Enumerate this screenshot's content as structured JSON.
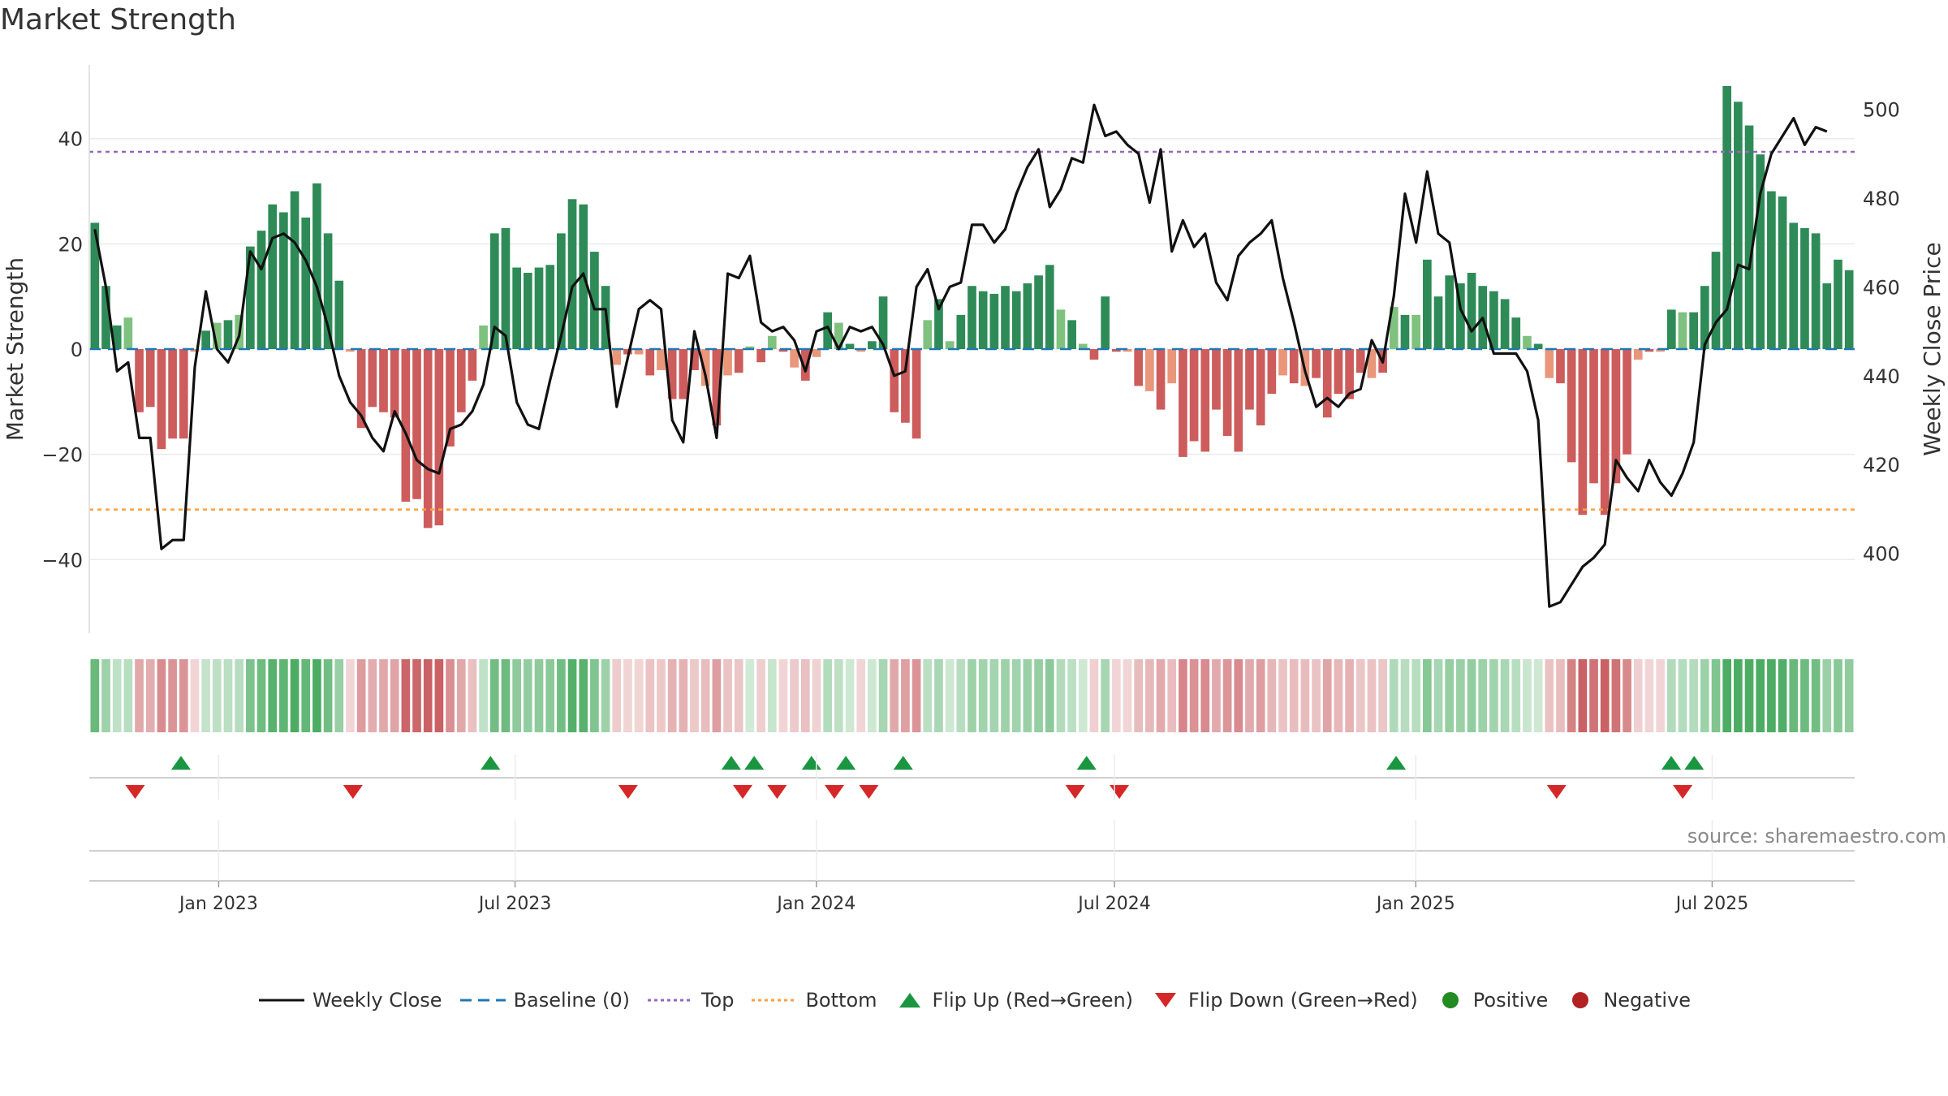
{
  "title": "Market Strength",
  "source": "source: sharemaestro.com",
  "colors": {
    "pos_strong": "#2e8b57",
    "pos_light": "#7fc17f",
    "neg_strong": "#cd5c5c",
    "neg_light": "#e9967a",
    "close_line": "#111111",
    "baseline": "#1f77b4",
    "top": "#9467bd",
    "bottom": "#ff9f40",
    "flip_up": "#1a9641",
    "flip_down": "#d62728",
    "positive": "#228b22",
    "negative": "#b22222"
  },
  "legend": [
    {
      "label": "Weekly Close",
      "icon": "solid-line-icon"
    },
    {
      "label": "Baseline (0)",
      "icon": "dashed-line-icon"
    },
    {
      "label": "Top",
      "icon": "dotted-purple-line-icon"
    },
    {
      "label": "Bottom",
      "icon": "dotted-orange-line-icon"
    },
    {
      "label": "Flip Up (Red→Green)",
      "icon": "triangle-up-icon"
    },
    {
      "label": "Flip Down (Green→Red)",
      "icon": "triangle-down-icon"
    },
    {
      "label": "Positive",
      "icon": "green-dot-icon"
    },
    {
      "label": "Negative",
      "icon": "red-dot-icon"
    }
  ],
  "chart_data": {
    "type": "bar",
    "title": "Market Strength",
    "ylabel": "Market Strength",
    "y2label": "Weekly Close Price",
    "ylim": [
      -54,
      54
    ],
    "y2lim": [
      382,
      510
    ],
    "yticks": [
      -40,
      -20,
      0,
      20,
      40
    ],
    "yticks_labels": [
      "−40",
      "−20",
      "0",
      "20",
      "40"
    ],
    "y2ticks": [
      400,
      420,
      440,
      460,
      480,
      500
    ],
    "top_level": 37.5,
    "bottom_level": -30.5,
    "x_start": "2022-10-14",
    "x_end": "2025-09-26",
    "xticks": [
      {
        "date": "2023-01-01",
        "label": "Jan 2023"
      },
      {
        "date": "2023-07-01",
        "label": "Jul 2023"
      },
      {
        "date": "2024-01-01",
        "label": "Jan 2024"
      },
      {
        "date": "2024-07-01",
        "label": "Jul 2024"
      },
      {
        "date": "2025-01-01",
        "label": "Jan 2025"
      },
      {
        "date": "2025-07-01",
        "label": "Jul 2025"
      }
    ],
    "strength": [
      24,
      12,
      4.5,
      6,
      -12,
      -11,
      -19,
      -17,
      -17,
      -0.5,
      3.5,
      5,
      5.5,
      6.5,
      19.5,
      22.5,
      27.5,
      26,
      30,
      25,
      31.5,
      22,
      13,
      -0.5,
      -15,
      -11,
      -12,
      -13,
      -29,
      -28.5,
      -34,
      -33.5,
      -18.5,
      -12,
      -6,
      4.5,
      22,
      23,
      15.5,
      14.5,
      15.5,
      16,
      22,
      28.5,
      27.5,
      18.5,
      12,
      -3,
      -1,
      -1,
      -5,
      -4,
      -9.5,
      -9.5,
      -4,
      -7,
      -14.5,
      -5,
      -4.5,
      0.5,
      -2.5,
      2.5,
      -0.5,
      -3.5,
      -6,
      -1.5,
      7,
      5,
      1,
      -0.5,
      1.5,
      10,
      -12,
      -14,
      -17,
      5.5,
      9.5,
      1.5,
      6.5,
      12,
      11,
      10.5,
      12,
      11,
      12.5,
      14,
      16,
      7.5,
      5.5,
      1,
      -2,
      10,
      -0.5,
      -0.5,
      -7,
      -8,
      -11.5,
      -6.5,
      -20.5,
      -17.5,
      -19.5,
      -11.5,
      -16.5,
      -19.5,
      -11.5,
      -14.5,
      -8.5,
      -5,
      -6.5,
      -7,
      -5.5,
      -13,
      -8.5,
      -9.5,
      -4.5,
      -5.5,
      -4.5,
      8,
      6.5,
      6.5,
      17,
      10,
      14,
      12.5,
      14.5,
      12,
      11,
      9.5,
      6,
      2.5,
      1,
      -5.5,
      -6.5,
      -21.5,
      -31.5,
      -25.5,
      -31.5,
      -25.5,
      -20,
      -2,
      -0.5,
      -0.5,
      7.5,
      7,
      7,
      12,
      18.5,
      50,
      47,
      42.5,
      37,
      30,
      29,
      24,
      23,
      22,
      12.5,
      17,
      15
    ],
    "close": [
      473,
      460,
      441,
      443,
      426,
      426,
      401,
      403,
      403,
      442,
      459,
      446,
      443,
      449,
      468,
      464,
      471,
      472,
      470,
      466,
      460,
      451,
      440,
      434,
      431,
      426,
      423,
      432,
      427,
      421,
      419,
      418,
      428,
      429,
      432,
      438,
      451,
      449,
      434,
      429,
      428,
      439,
      449,
      460,
      463,
      455,
      455,
      433,
      444,
      455,
      457,
      455,
      430,
      425,
      450,
      440,
      426,
      463,
      462,
      467,
      452,
      450,
      451,
      448,
      441,
      450,
      451,
      446,
      451,
      450,
      451,
      447,
      440,
      441,
      460,
      464,
      455,
      460,
      461,
      474,
      474,
      470,
      473,
      481,
      487,
      491,
      478,
      482,
      489,
      488,
      501,
      494,
      495,
      492,
      490,
      479,
      491,
      468,
      475,
      469,
      472,
      461,
      457,
      467,
      470,
      472,
      475,
      462,
      452,
      441,
      433,
      435,
      433,
      436,
      437,
      448,
      443,
      458,
      481,
      470,
      486,
      472,
      470,
      455,
      450,
      453,
      445,
      445,
      445,
      441,
      430,
      388,
      389,
      393,
      397,
      399,
      402,
      421,
      417,
      414,
      421,
      416,
      413,
      418,
      425,
      447,
      452,
      455,
      465,
      464,
      481,
      490,
      494,
      498,
      492,
      496,
      495
    ],
    "flips_up": [
      "2022-12-09",
      "2023-06-16",
      "2023-11-10",
      "2023-11-24",
      "2023-12-29",
      "2024-01-19",
      "2024-02-23",
      "2024-06-14",
      "2024-12-20",
      "2025-06-06",
      "2025-06-20"
    ],
    "flips_down": [
      "2022-11-11",
      "2023-03-24",
      "2023-09-08",
      "2023-11-17",
      "2023-12-08",
      "2024-01-12",
      "2024-02-02",
      "2024-06-07",
      "2024-07-04",
      "2025-03-28",
      "2025-06-13"
    ]
  }
}
